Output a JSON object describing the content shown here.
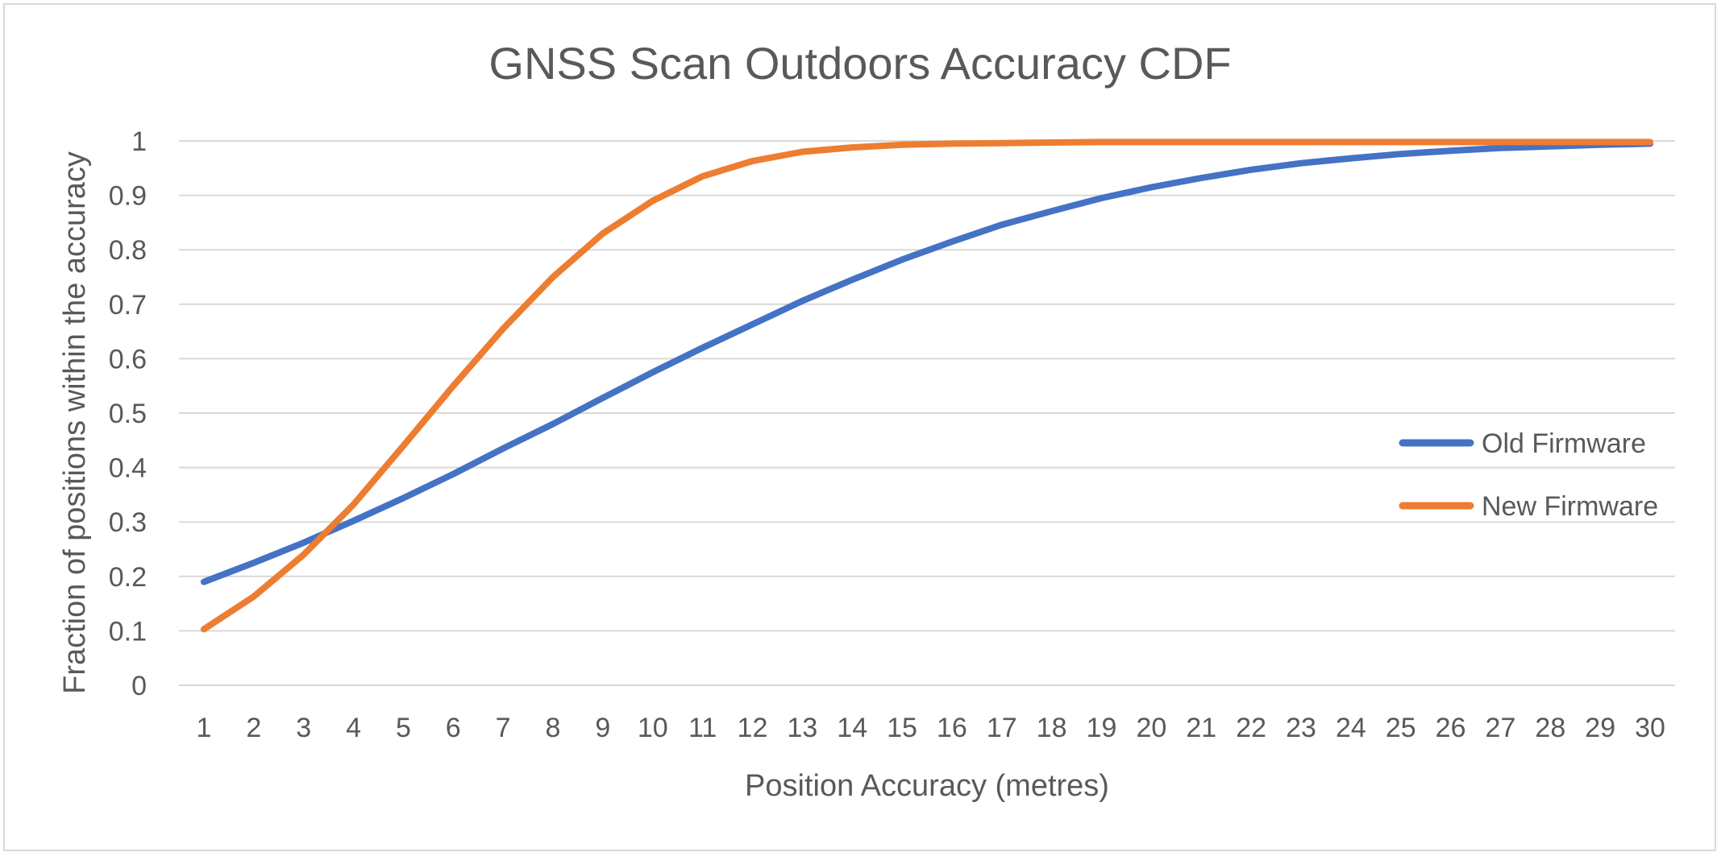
{
  "chart_data": {
    "type": "line",
    "title": "GNSS Scan Outdoors Accuracy CDF",
    "xlabel": "Position Accuracy (metres)",
    "ylabel": "Fraction of positions within the accuracy",
    "x": [
      1,
      2,
      3,
      4,
      5,
      6,
      7,
      8,
      9,
      10,
      11,
      12,
      13,
      14,
      15,
      16,
      17,
      18,
      19,
      20,
      21,
      22,
      23,
      24,
      25,
      26,
      27,
      28,
      29,
      30
    ],
    "ylim": [
      0,
      1
    ],
    "yticks": [
      "0",
      "0.1",
      "0.2",
      "0.3",
      "0.4",
      "0.5",
      "0.6",
      "0.7",
      "0.8",
      "0.9",
      "1"
    ],
    "xticks": [
      "1",
      "2",
      "3",
      "4",
      "5",
      "6",
      "7",
      "8",
      "9",
      "10",
      "11",
      "12",
      "13",
      "14",
      "15",
      "16",
      "17",
      "18",
      "19",
      "20",
      "21",
      "22",
      "23",
      "24",
      "25",
      "26",
      "27",
      "28",
      "29",
      "30"
    ],
    "grid": true,
    "legend_position": "right",
    "series": [
      {
        "name": "Old Firmware",
        "color": "#4472C4",
        "values": [
          0.19,
          0.225,
          0.262,
          0.302,
          0.344,
          0.388,
          0.435,
          0.48,
          0.528,
          0.575,
          0.62,
          0.663,
          0.706,
          0.745,
          0.782,
          0.815,
          0.846,
          0.871,
          0.895,
          0.915,
          0.932,
          0.947,
          0.959,
          0.968,
          0.976,
          0.982,
          0.987,
          0.99,
          0.993,
          0.995
        ]
      },
      {
        "name": "New Firmware",
        "color": "#ED7D31",
        "values": [
          0.103,
          0.163,
          0.24,
          0.332,
          0.44,
          0.55,
          0.655,
          0.75,
          0.83,
          0.89,
          0.935,
          0.963,
          0.98,
          0.988,
          0.993,
          0.995,
          0.996,
          0.997,
          0.998,
          0.998,
          0.998,
          0.998,
          0.998,
          0.998,
          0.998,
          0.998,
          0.998,
          0.998,
          0.998,
          0.998
        ]
      }
    ]
  }
}
